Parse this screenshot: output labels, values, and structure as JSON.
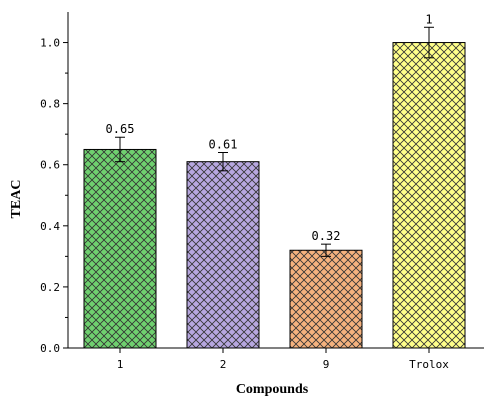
{
  "chart_data": {
    "type": "bar",
    "title": "",
    "xlabel": "Compounds",
    "ylabel": "TEAC",
    "categories": [
      "1",
      "2",
      "9",
      "Trolox"
    ],
    "values": [
      0.65,
      0.61,
      0.32,
      1.0
    ],
    "errors": [
      0.04,
      0.03,
      0.02,
      0.05
    ],
    "value_labels": [
      "0.65",
      "0.61",
      "0.32",
      "1"
    ],
    "colors": [
      "#6fd06f",
      "#b7a7e0",
      "#f5b27e",
      "#ffff8a"
    ],
    "pattern": "crosshatch",
    "ylim": [
      0,
      1.1
    ],
    "yticks": [
      0.0,
      0.2,
      0.4,
      0.6,
      0.8,
      1.0
    ],
    "ytick_labels": [
      "0.0",
      "0.2",
      "0.4",
      "0.6",
      "0.8",
      "1.0"
    ],
    "grid": false,
    "legend": "none"
  }
}
